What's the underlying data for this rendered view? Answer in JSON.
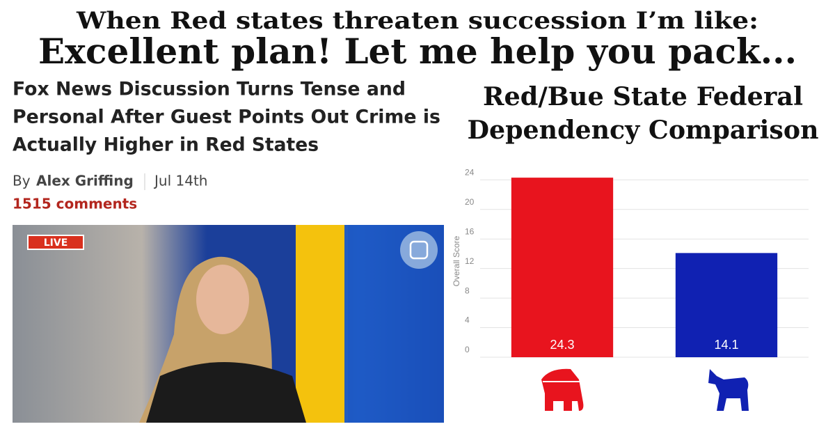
{
  "meme": {
    "top_line": "When Red states threaten succession I’m like:",
    "bottom_line": "Excellent plan! Let me help you pack..."
  },
  "article": {
    "headline_lines": [
      "Fox News Discussion Turns Tense and",
      "Personal After Guest Points Out Crime is",
      "Actually Higher in Red States"
    ],
    "by": "By",
    "author": "Alex Griffing",
    "date": "Jul 14th",
    "comments": "1515 comments",
    "badge": "LIVE"
  },
  "chart_data": {
    "type": "bar",
    "title": [
      "Red/Bue State Federal",
      "Dependency Comparison"
    ],
    "y_label": "Overall Score",
    "categories": [
      null,
      null
    ],
    "values": [
      24.3,
      14.1
    ],
    "colors": [
      "#e8141e",
      "#1021b2"
    ],
    "ylim": [
      0,
      24.5
    ],
    "yticks": [
      0,
      4,
      8,
      12,
      16,
      20,
      24
    ],
    "grid": true
  }
}
